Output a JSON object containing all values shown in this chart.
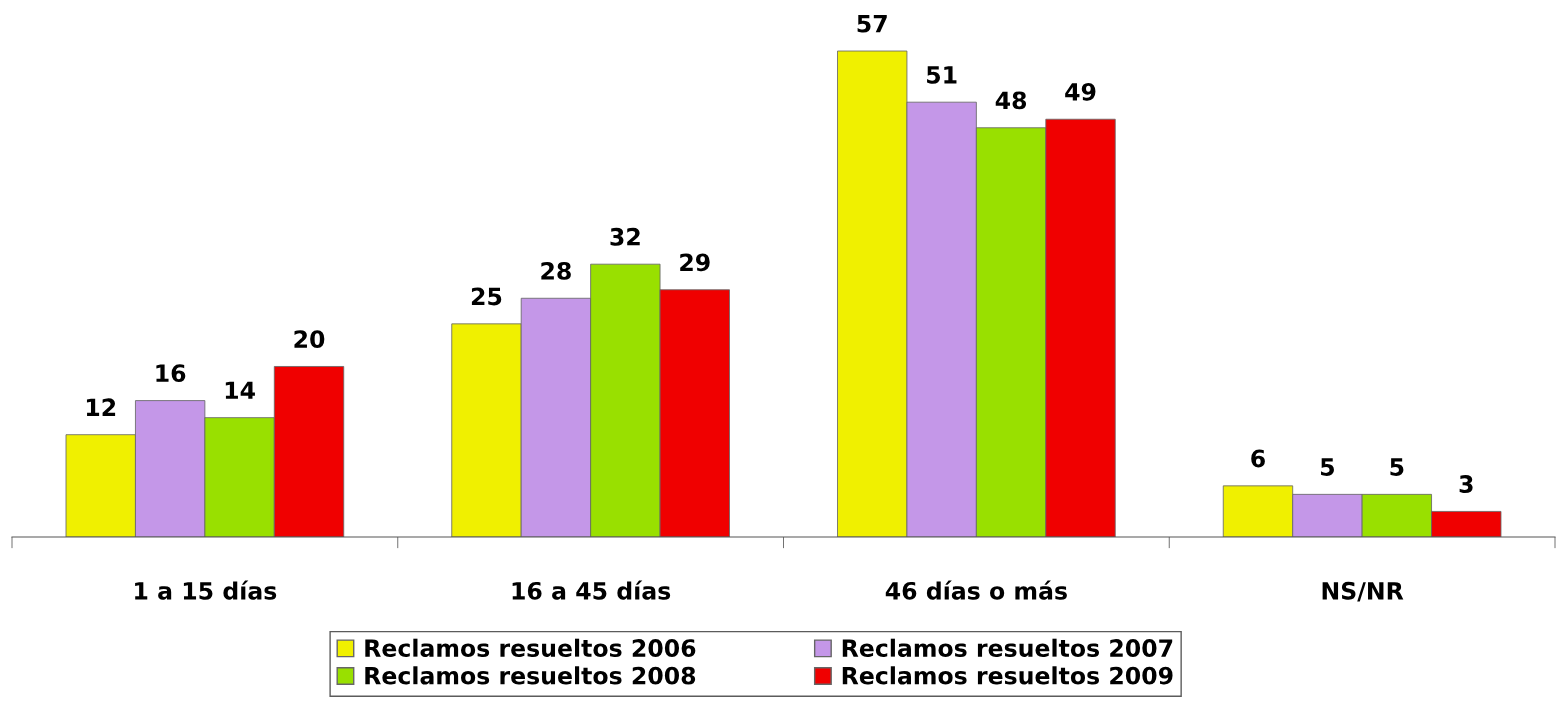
{
  "chart_data": {
    "type": "bar",
    "categories": [
      "1 a 15 días",
      "16 a 45 días",
      "46 días o más",
      "NS/NR"
    ],
    "series": [
      {
        "name": "Reclamos resueltos 2006",
        "color": "#f0f000",
        "values": [
          12,
          25,
          57,
          6
        ]
      },
      {
        "name": "Reclamos resueltos 2007",
        "color": "#c497e8",
        "values": [
          16,
          28,
          51,
          5
        ]
      },
      {
        "name": "Reclamos resueltos 2008",
        "color": "#99e000",
        "values": [
          14,
          32,
          48,
          5
        ]
      },
      {
        "name": "Reclamos resueltos 2009",
        "color": "#f00000",
        "values": [
          20,
          29,
          49,
          3
        ]
      }
    ],
    "data_labels": true,
    "legend": "bottom",
    "tick_labels": "x"
  }
}
